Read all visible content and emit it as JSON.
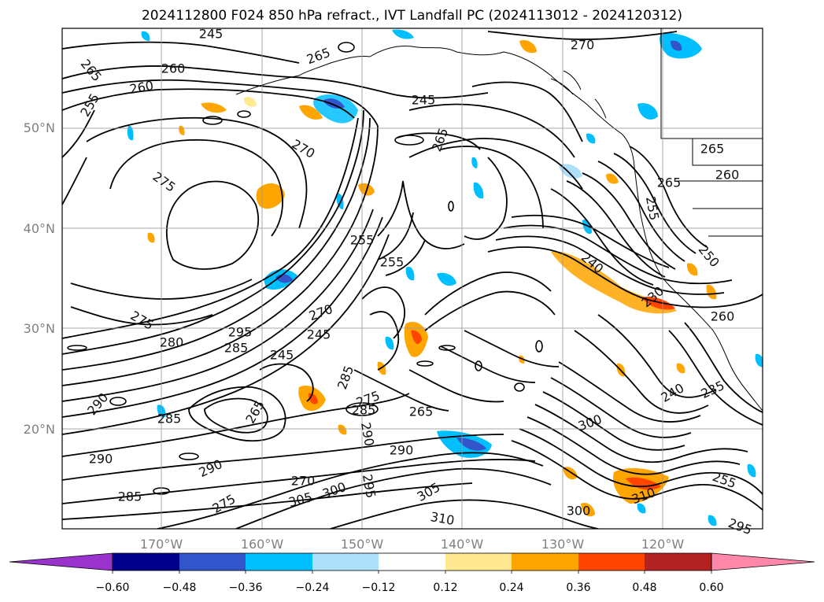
{
  "title": "2024112800 F024 850 hPa refract., IVT Landfall PC (2024113012 - 2024120312)",
  "latitude_labels": [
    "50°N",
    "40°N",
    "30°N",
    "20°N"
  ],
  "longitude_labels": [
    "170°W",
    "160°W",
    "150°W",
    "140°W",
    "130°W",
    "120°W"
  ],
  "contour_labels": [
    "245",
    "265",
    "260",
    "255",
    "260",
    "245",
    "265",
    "270",
    "270",
    "275",
    "265",
    "255",
    "255",
    "265",
    "275",
    "280",
    "295",
    "285",
    "270",
    "245",
    "245",
    "240",
    "230",
    "250",
    "260",
    "290",
    "285",
    "265",
    "285",
    "290",
    "275",
    "265",
    "290",
    "305",
    "310",
    "295",
    "305",
    "300",
    "290",
    "300",
    "310",
    "285",
    "295",
    "275",
    "270",
    "265",
    "255",
    "235",
    "240",
    "300",
    "290",
    "285",
    "260",
    "255"
  ],
  "colorbar": {
    "ticks": [
      "−0.60",
      "−0.48",
      "−0.36",
      "−0.24",
      "−0.12",
      "0.12",
      "0.24",
      "0.36",
      "0.48",
      "0.60"
    ],
    "colors": [
      "#9933cc",
      "#00008b",
      "#3355cc",
      "#00bfff",
      "#aee0fa",
      "#ffffff",
      "#ffe890",
      "#ffa500",
      "#ff4500",
      "#b22222",
      "#ff88aa"
    ]
  }
}
